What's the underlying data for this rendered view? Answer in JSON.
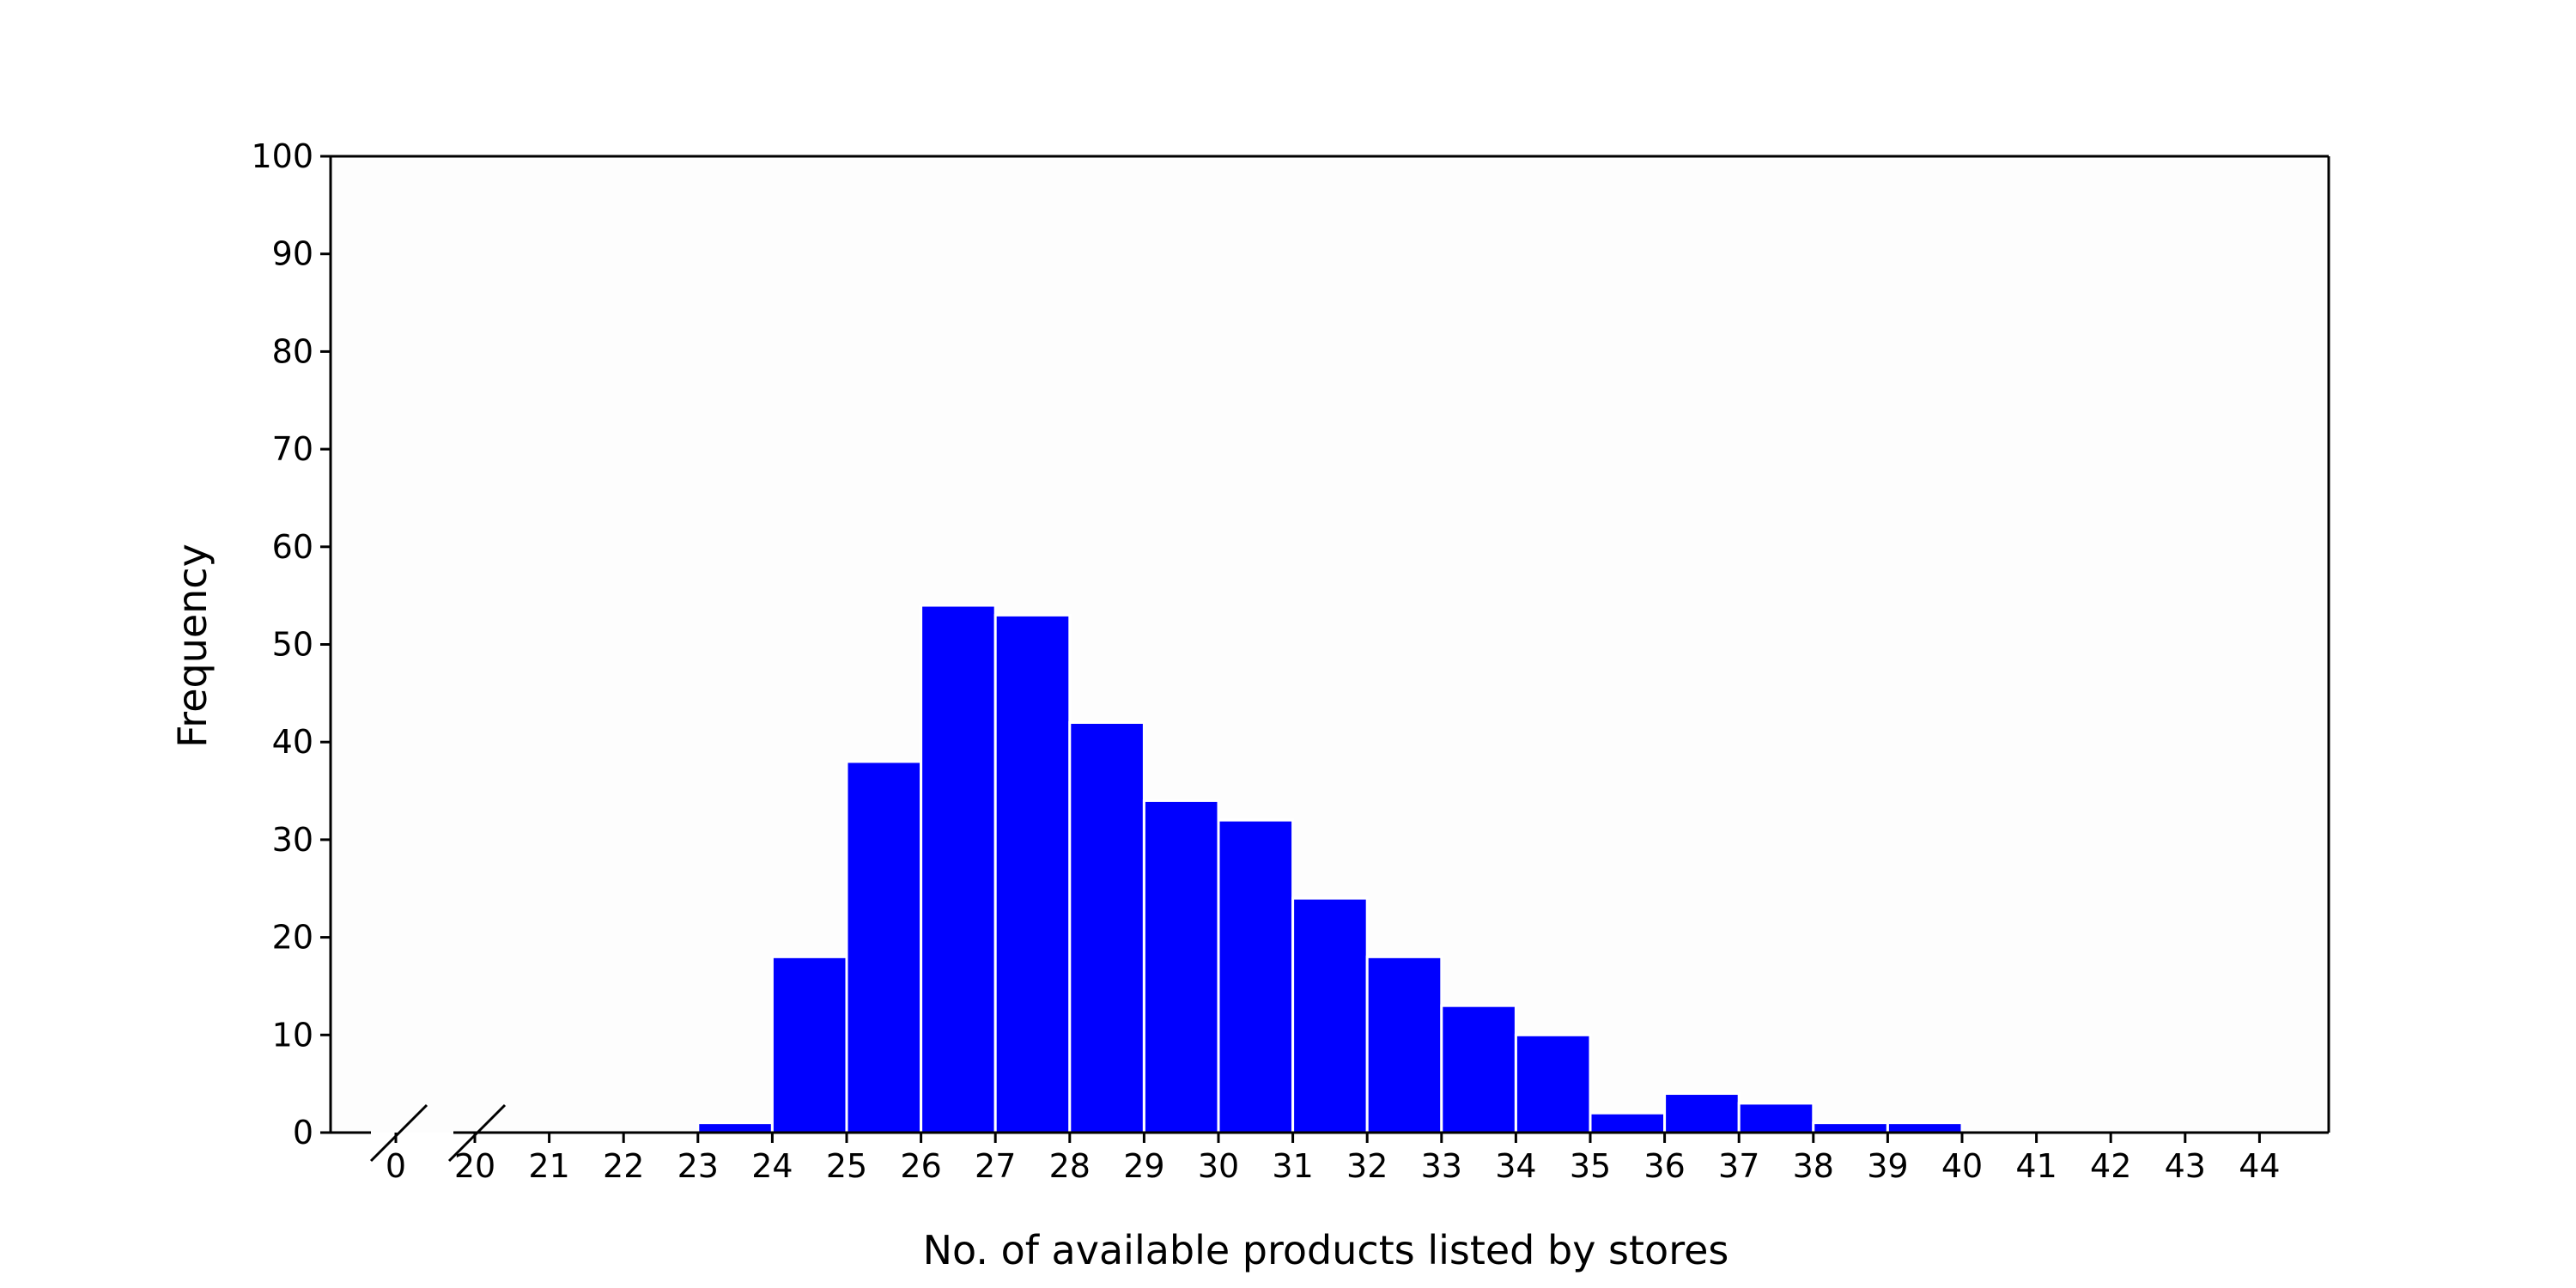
{
  "chart_data": {
    "type": "bar",
    "title": "",
    "xlabel": "No. of available products listed by stores",
    "ylabel": "Frequency",
    "ylim": [
      0,
      100
    ],
    "yticks": [
      "0",
      "10",
      "20",
      "30",
      "40",
      "50",
      "60",
      "70",
      "80",
      "90",
      "100"
    ],
    "x_axis_break": "between 0 and 20",
    "x_tick_labels": [
      "0",
      "20",
      "21",
      "22",
      "23",
      "24",
      "25",
      "26",
      "27",
      "28",
      "29",
      "30",
      "31",
      "32",
      "33",
      "34",
      "35",
      "36",
      "37",
      "38",
      "39",
      "40",
      "41",
      "42",
      "43",
      "44"
    ],
    "bins": [
      {
        "start": 23,
        "end": 24,
        "value": 1
      },
      {
        "start": 24,
        "end": 25,
        "value": 18
      },
      {
        "start": 25,
        "end": 26,
        "value": 38
      },
      {
        "start": 26,
        "end": 27,
        "value": 54
      },
      {
        "start": 27,
        "end": 28,
        "value": 53
      },
      {
        "start": 28,
        "end": 29,
        "value": 42
      },
      {
        "start": 29,
        "end": 30,
        "value": 34
      },
      {
        "start": 30,
        "end": 31,
        "value": 32
      },
      {
        "start": 31,
        "end": 32,
        "value": 24
      },
      {
        "start": 32,
        "end": 33,
        "value": 18
      },
      {
        "start": 33,
        "end": 34,
        "value": 13
      },
      {
        "start": 34,
        "end": 35,
        "value": 10
      },
      {
        "start": 35,
        "end": 36,
        "value": 2
      },
      {
        "start": 36,
        "end": 37,
        "value": 4
      },
      {
        "start": 37,
        "end": 38,
        "value": 3
      },
      {
        "start": 38,
        "end": 39,
        "value": 1
      },
      {
        "start": 39,
        "end": 40,
        "value": 1
      }
    ],
    "bar_color": "#0000ff",
    "grid": false,
    "legend": "none"
  }
}
